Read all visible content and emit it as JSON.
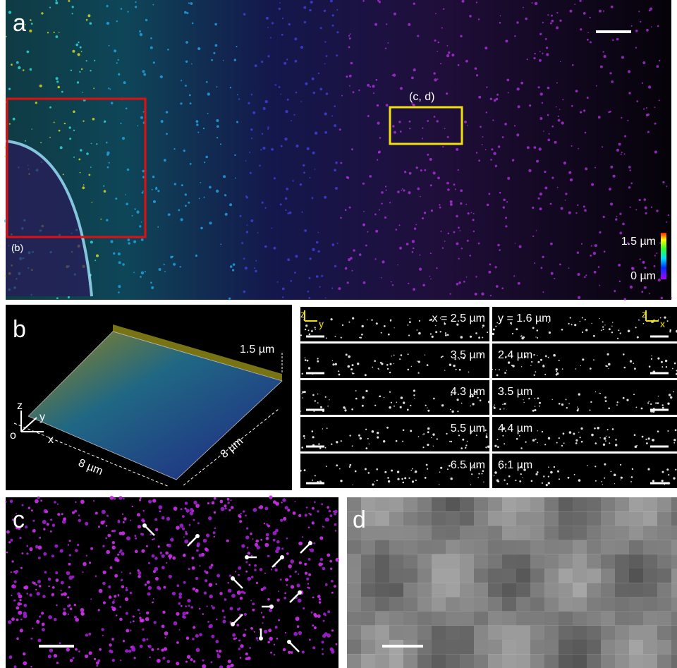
{
  "panels": {
    "a": {
      "label": "a",
      "roi_cd": "(c, d)",
      "roi_b": "(b)",
      "colorbar": {
        "max": "1.5 µm",
        "min": "0 µm"
      }
    },
    "b": {
      "label": "b",
      "height": "1.5 µm",
      "axes": {
        "z": "z",
        "y": "y",
        "o": "o",
        "x": "x"
      },
      "dim_x": "8 µm",
      "dim_y": "8 µm"
    },
    "slices": {
      "xz": {
        "axes": [
          "z",
          "y"
        ],
        "labels": [
          "x = 2.5 µm",
          "3.5 µm",
          "4.3 µm",
          "5.5 µm",
          "6.5 µm"
        ]
      },
      "yz": {
        "axes": [
          "z",
          "x"
        ],
        "labels": [
          "y = 1.6 µm",
          "2.4 µm",
          "3.5 µm",
          "4.4 µm",
          "6.1 µm"
        ]
      }
    },
    "c": {
      "label": "c"
    },
    "d": {
      "label": "d"
    }
  }
}
